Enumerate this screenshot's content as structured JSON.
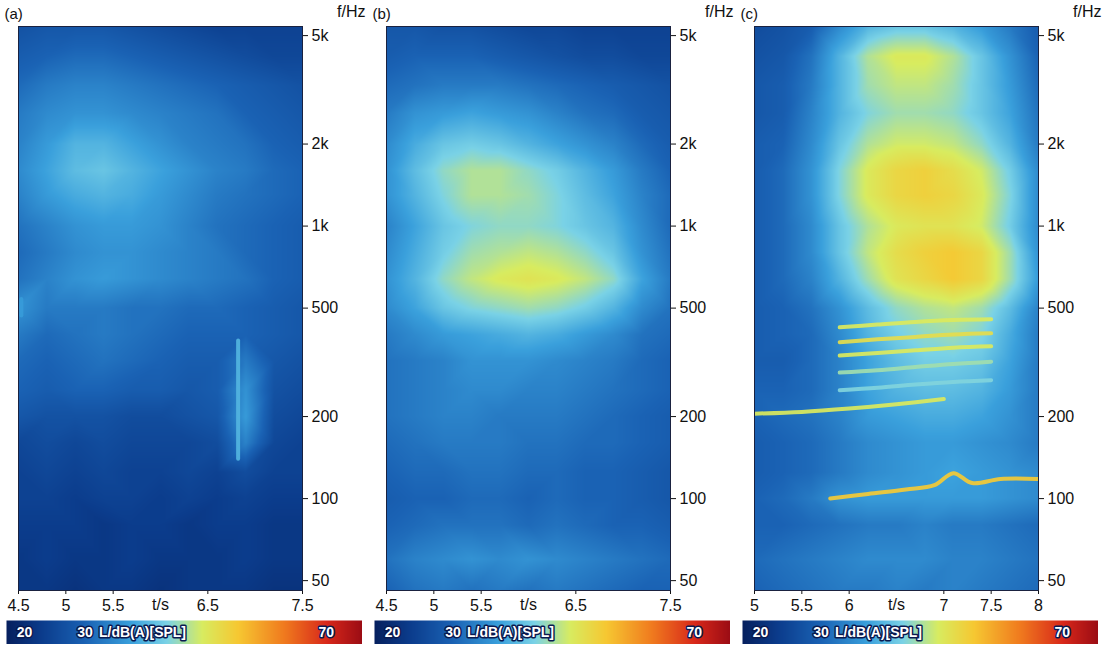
{
  "chart_data": [
    {
      "type": "heatmap",
      "title": "(a)",
      "x_label": "t/s",
      "y_label": "f/Hz",
      "xlim": [
        4.5,
        7.5
      ],
      "xticks": [
        4.5,
        5,
        5.5,
        6.5,
        7.5
      ],
      "ylim": [
        46,
        5400
      ],
      "log": "y",
      "yticks": [
        50,
        100,
        200,
        500,
        {
          "value": 1000,
          "label": "1k"
        },
        {
          "value": 2000,
          "label": "2k"
        },
        {
          "value": 5000,
          "label": "5k"
        }
      ],
      "cells": {
        "t": [
          4.5,
          4.8,
          5.1,
          5.4,
          5.7,
          6.0,
          6.3,
          6.6,
          6.9,
          7.2,
          7.5
        ],
        "f": [
          46,
          60,
          80,
          100,
          125,
          160,
          200,
          250,
          320,
          400,
          500,
          640,
          800,
          1000,
          1300,
          1600,
          2000,
          2600,
          3300,
          4200,
          5400
        ],
        "values": [
          [
            22,
            22,
            21,
            22,
            22,
            21,
            22,
            22,
            22,
            21,
            21
          ],
          [
            22,
            23,
            22,
            22,
            23,
            22,
            22,
            22,
            23,
            22,
            22
          ],
          [
            23,
            23,
            23,
            22,
            23,
            23,
            22,
            23,
            23,
            22,
            22
          ],
          [
            24,
            24,
            23,
            24,
            24,
            23,
            24,
            23,
            24,
            23,
            23
          ],
          [
            24,
            25,
            24,
            25,
            24,
            24,
            25,
            24,
            26,
            24,
            24
          ],
          [
            25,
            26,
            25,
            26,
            25,
            25,
            25,
            26,
            34,
            25,
            24
          ],
          [
            28,
            27,
            27,
            27,
            26,
            26,
            27,
            28,
            37,
            26,
            25
          ],
          [
            30,
            29,
            30,
            30,
            29,
            29,
            28,
            29,
            36,
            27,
            26
          ],
          [
            31,
            30,
            31,
            32,
            31,
            30,
            29,
            29,
            33,
            28,
            27
          ],
          [
            33,
            31,
            32,
            33,
            32,
            31,
            30,
            30,
            30,
            29,
            28
          ],
          [
            36,
            33,
            33,
            33,
            32,
            32,
            31,
            31,
            30,
            29,
            28
          ],
          [
            32,
            34,
            36,
            37,
            36,
            35,
            34,
            33,
            32,
            30,
            29
          ],
          [
            31,
            33,
            35,
            36,
            36,
            35,
            34,
            33,
            31,
            30,
            29
          ],
          [
            32,
            34,
            36,
            37,
            37,
            36,
            34,
            32,
            31,
            30,
            29
          ],
          [
            34,
            37,
            39,
            40,
            39,
            37,
            35,
            33,
            32,
            31,
            30
          ],
          [
            35,
            38,
            41,
            42,
            40,
            38,
            36,
            34,
            33,
            31,
            30
          ],
          [
            34,
            37,
            40,
            40,
            38,
            36,
            34,
            33,
            32,
            30,
            29
          ],
          [
            33,
            35,
            36,
            36,
            35,
            34,
            33,
            32,
            30,
            29,
            28
          ],
          [
            31,
            33,
            34,
            34,
            33,
            32,
            31,
            30,
            29,
            28,
            27
          ],
          [
            29,
            30,
            31,
            31,
            30,
            29,
            28,
            27,
            26,
            25,
            25
          ],
          [
            27,
            28,
            28,
            28,
            27,
            26,
            25,
            24,
            24,
            24,
            24
          ]
        ]
      },
      "tones": [
        {
          "t": [
            6.82,
            6.82
          ],
          "f": [
            140,
            380
          ],
          "level": 40
        },
        {
          "t": [
            4.53,
            4.53
          ],
          "f": [
            470,
            540
          ],
          "level": 37
        }
      ],
      "colorbar": {
        "range": [
          17,
          76
        ],
        "ticks": [
          20,
          30,
          70
        ],
        "label": "L/dB(A)[SPL]"
      }
    },
    {
      "type": "heatmap",
      "title": "(b)",
      "x_label": "t/s",
      "y_label": "f/Hz",
      "xlim": [
        4.5,
        7.5
      ],
      "xticks": [
        4.5,
        5,
        5.5,
        6.5,
        7.5
      ],
      "ylim": [
        46,
        5400
      ],
      "log": "y",
      "yticks": [
        50,
        100,
        200,
        500,
        {
          "value": 1000,
          "label": "1k"
        },
        {
          "value": 2000,
          "label": "2k"
        },
        {
          "value": 5000,
          "label": "5k"
        }
      ],
      "cells": {
        "t": [
          4.5,
          4.8,
          5.1,
          5.4,
          5.7,
          6.0,
          6.3,
          6.6,
          6.9,
          7.2,
          7.5
        ],
        "f": [
          46,
          60,
          80,
          100,
          125,
          160,
          200,
          250,
          320,
          400,
          500,
          640,
          800,
          1000,
          1300,
          1600,
          2000,
          2600,
          3300,
          4200,
          5400
        ],
        "values": [
          [
            30,
            32,
            33,
            32,
            33,
            32,
            33,
            32,
            31,
            30,
            30
          ],
          [
            32,
            34,
            35,
            36,
            35,
            36,
            35,
            34,
            33,
            32,
            31
          ],
          [
            30,
            31,
            32,
            32,
            32,
            31,
            32,
            31,
            30,
            30,
            29
          ],
          [
            29,
            30,
            30,
            31,
            31,
            30,
            31,
            30,
            30,
            29,
            28
          ],
          [
            30,
            31,
            31,
            32,
            32,
            31,
            31,
            30,
            30,
            29,
            28
          ],
          [
            31,
            32,
            33,
            33,
            33,
            32,
            32,
            31,
            31,
            30,
            29
          ],
          [
            32,
            33,
            34,
            34,
            33,
            33,
            33,
            32,
            31,
            30,
            29
          ],
          [
            32,
            33,
            34,
            35,
            35,
            34,
            34,
            33,
            32,
            31,
            30
          ],
          [
            32,
            33,
            34,
            36,
            36,
            36,
            35,
            34,
            33,
            31,
            30
          ],
          [
            33,
            35,
            37,
            38,
            39,
            40,
            39,
            37,
            35,
            32,
            31
          ],
          [
            35,
            38,
            42,
            44,
            45,
            46,
            45,
            43,
            40,
            35,
            32
          ],
          [
            36,
            40,
            45,
            48,
            50,
            51,
            50,
            48,
            45,
            38,
            33
          ],
          [
            35,
            39,
            43,
            46,
            47,
            48,
            47,
            45,
            42,
            36,
            32
          ],
          [
            34,
            38,
            42,
            44,
            45,
            45,
            44,
            42,
            40,
            35,
            31
          ],
          [
            36,
            40,
            44,
            47,
            47,
            46,
            44,
            41,
            38,
            34,
            31
          ],
          [
            36,
            41,
            45,
            47,
            47,
            45,
            43,
            40,
            37,
            33,
            30
          ],
          [
            35,
            39,
            42,
            43,
            42,
            40,
            38,
            36,
            34,
            31,
            29
          ],
          [
            33,
            36,
            37,
            38,
            37,
            36,
            34,
            32,
            31,
            29,
            28
          ],
          [
            31,
            32,
            33,
            33,
            33,
            32,
            31,
            30,
            29,
            28,
            27
          ],
          [
            29,
            30,
            30,
            30,
            29,
            28,
            27,
            26,
            26,
            25,
            25
          ],
          [
            28,
            28,
            27,
            27,
            26,
            25,
            25,
            24,
            24,
            24,
            24
          ]
        ]
      },
      "colorbar": {
        "range": [
          17,
          76
        ],
        "ticks": [
          20,
          30,
          70
        ],
        "label": "L/dB(A)[SPL]"
      }
    },
    {
      "type": "heatmap",
      "title": "(c)",
      "x_label": "t/s",
      "y_label": "f/Hz",
      "xlim": [
        5,
        8
      ],
      "xticks": [
        5,
        5.5,
        6,
        7,
        7.5,
        8
      ],
      "ylim": [
        46,
        5400
      ],
      "log": "y",
      "yticks": [
        50,
        100,
        200,
        500,
        {
          "value": 1000,
          "label": "1k"
        },
        {
          "value": 2000,
          "label": "2k"
        },
        {
          "value": 5000,
          "label": "5k"
        }
      ],
      "cells": {
        "t": [
          5,
          5.3,
          5.6,
          5.9,
          6.2,
          6.5,
          6.8,
          7.1,
          7.4,
          7.7,
          8
        ],
        "f": [
          46,
          60,
          80,
          100,
          125,
          160,
          200,
          250,
          320,
          400,
          500,
          640,
          800,
          1000,
          1300,
          1600,
          2000,
          2600,
          3300,
          4200,
          5400
        ],
        "values": [
          [
            30,
            31,
            32,
            33,
            33,
            34,
            33,
            34,
            33,
            32,
            31
          ],
          [
            31,
            32,
            33,
            34,
            35,
            35,
            35,
            34,
            34,
            33,
            32
          ],
          [
            30,
            30,
            31,
            32,
            33,
            33,
            34,
            33,
            33,
            32,
            31
          ],
          [
            30,
            31,
            33,
            36,
            37,
            37,
            37,
            37,
            37,
            36,
            35
          ],
          [
            29,
            30,
            31,
            33,
            35,
            36,
            37,
            38,
            37,
            36,
            35
          ],
          [
            29,
            30,
            31,
            33,
            35,
            36,
            37,
            37,
            36,
            35,
            33
          ],
          [
            30,
            31,
            32,
            34,
            37,
            38,
            39,
            39,
            38,
            36,
            33
          ],
          [
            30,
            30,
            31,
            34,
            38,
            40,
            41,
            41,
            40,
            37,
            33
          ],
          [
            29,
            29,
            31,
            34,
            38,
            41,
            43,
            43,
            42,
            38,
            33
          ],
          [
            29,
            30,
            31,
            35,
            40,
            43,
            45,
            46,
            44,
            39,
            33
          ],
          [
            29,
            30,
            32,
            36,
            41,
            45,
            47,
            48,
            46,
            41,
            34
          ],
          [
            29,
            31,
            34,
            40,
            46,
            51,
            53,
            55,
            53,
            46,
            37
          ],
          [
            29,
            31,
            35,
            42,
            48,
            52,
            54,
            55,
            53,
            46,
            36
          ],
          [
            29,
            31,
            35,
            42,
            47,
            50,
            51,
            51,
            49,
            43,
            35
          ],
          [
            29,
            31,
            36,
            44,
            50,
            53,
            54,
            53,
            50,
            44,
            35
          ],
          [
            29,
            31,
            36,
            44,
            50,
            53,
            54,
            52,
            49,
            43,
            35
          ],
          [
            29,
            30,
            35,
            42,
            47,
            49,
            49,
            48,
            45,
            40,
            33
          ],
          [
            28,
            29,
            34,
            40,
            44,
            46,
            46,
            45,
            42,
            38,
            32
          ],
          [
            28,
            29,
            33,
            40,
            46,
            48,
            48,
            46,
            42,
            37,
            31
          ],
          [
            27,
            28,
            32,
            40,
            47,
            50,
            50,
            47,
            42,
            36,
            30
          ],
          [
            26,
            27,
            29,
            35,
            40,
            42,
            42,
            40,
            37,
            33,
            29
          ]
        ]
      },
      "tones": [
        {
          "t": [
            5.8,
            6.2,
            6.6,
            6.9,
            7.1,
            7.3,
            7.6,
            8.0
          ],
          "f": [
            100,
            104,
            108,
            112,
            124,
            114,
            118,
            118
          ],
          "level": 55
        },
        {
          "t": [
            5.0,
            5.5,
            6.0,
            6.5,
            7.0
          ],
          "f": [
            205,
            208,
            214,
            222,
            232
          ],
          "level": 50
        },
        {
          "t": [
            5.9,
            6.3,
            6.7,
            7.1,
            7.5
          ],
          "f": [
            250,
            255,
            262,
            268,
            272
          ],
          "level": 44
        },
        {
          "t": [
            5.9,
            6.3,
            6.7,
            7.1,
            7.5
          ],
          "f": [
            290,
            296,
            304,
            312,
            318
          ],
          "level": 46
        },
        {
          "t": [
            5.9,
            6.3,
            6.7,
            7.1,
            7.5
          ],
          "f": [
            335,
            342,
            350,
            358,
            362
          ],
          "level": 50
        },
        {
          "t": [
            5.9,
            6.3,
            6.7,
            7.1,
            7.5
          ],
          "f": [
            375,
            384,
            392,
            400,
            404
          ],
          "level": 52
        },
        {
          "t": [
            5.9,
            6.3,
            6.7,
            7.1,
            7.5
          ],
          "f": [
            425,
            435,
            445,
            452,
            455
          ],
          "level": 50
        }
      ],
      "colorbar": {
        "range": [
          17,
          76
        ],
        "ticks": [
          20,
          30,
          70
        ],
        "label": "L/dB(A)[SPL]"
      }
    }
  ]
}
